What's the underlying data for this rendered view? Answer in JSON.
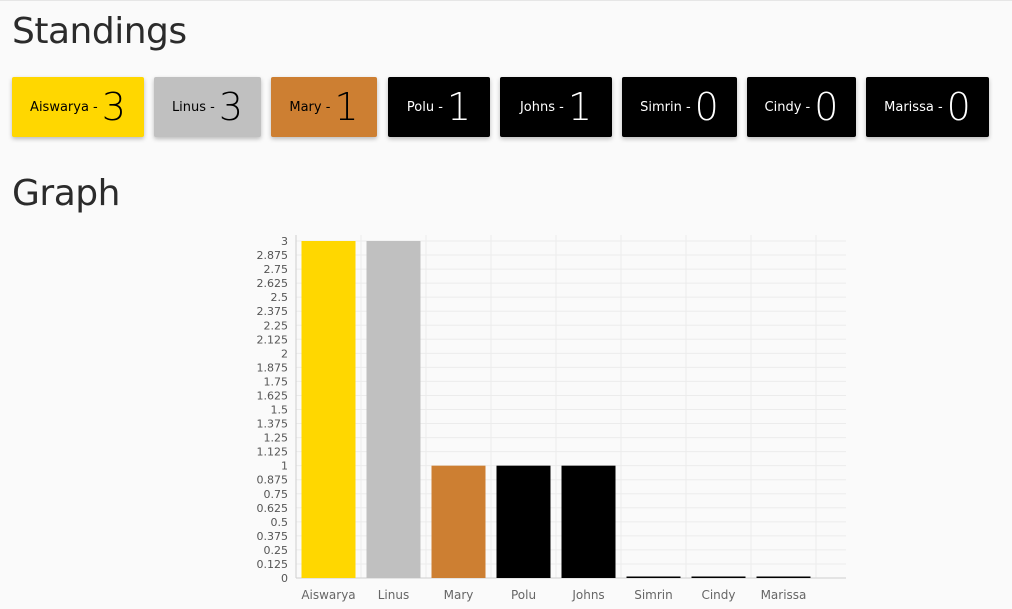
{
  "standings": {
    "title": "Standings",
    "cards": [
      {
        "name": "Aiswarya -",
        "score": "3",
        "bg": "#ffd700",
        "fg": "#000000"
      },
      {
        "name": "Linus -",
        "score": "3",
        "bg": "#c0c0c0",
        "fg": "#000000"
      },
      {
        "name": "Mary -",
        "score": "1",
        "bg": "#cd7f32",
        "fg": "#000000"
      },
      {
        "name": "Polu -",
        "score": "1",
        "bg": "#000000",
        "fg": "#ffffff"
      },
      {
        "name": "Johns -",
        "score": "1",
        "bg": "#000000",
        "fg": "#ffffff"
      },
      {
        "name": "Simrin -",
        "score": "0",
        "bg": "#000000",
        "fg": "#ffffff"
      },
      {
        "name": "Cindy -",
        "score": "0",
        "bg": "#000000",
        "fg": "#ffffff"
      },
      {
        "name": "Marissa -",
        "score": "0",
        "bg": "#000000",
        "fg": "#ffffff"
      }
    ]
  },
  "graph": {
    "title": "Graph"
  },
  "chart_data": {
    "type": "bar",
    "title": "",
    "xlabel": "",
    "ylabel": "",
    "categories": [
      "Aiswarya",
      "Linus",
      "Mary",
      "Polu",
      "Johns",
      "Simrin",
      "Cindy",
      "Marissa"
    ],
    "values": [
      3,
      3,
      1,
      1,
      1,
      0,
      0,
      0
    ],
    "colors": [
      "#ffd700",
      "#c0c0c0",
      "#cd7f32",
      "#000000",
      "#000000",
      "#000000",
      "#000000",
      "#000000"
    ],
    "ylim": [
      0,
      3
    ],
    "yticks": [
      "0",
      "0.125",
      "0.25",
      "0.375",
      "0.5",
      "0.625",
      "0.75",
      "0.875",
      "1",
      "1.125",
      "1.25",
      "1.375",
      "1.5",
      "1.625",
      "1.75",
      "1.875",
      "2",
      "2.125",
      "2.25",
      "2.375",
      "2.5",
      "2.625",
      "2.75",
      "2.875",
      "3"
    ],
    "grid": true
  }
}
